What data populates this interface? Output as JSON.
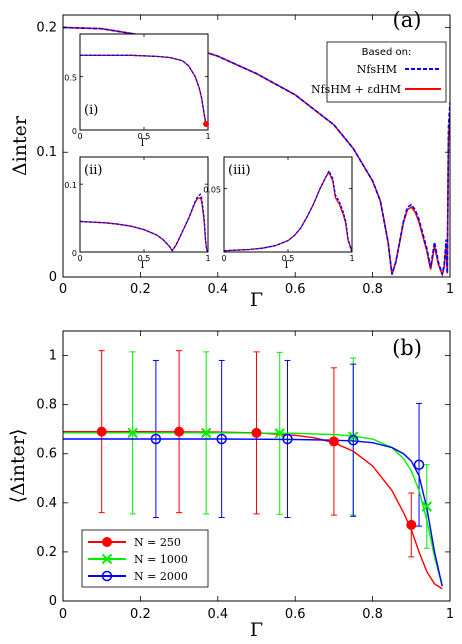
{
  "colors": {
    "blue": "#0000ff",
    "red": "#ff0000",
    "green": "#00ee00",
    "purple": "#7f00bf"
  },
  "chart_data": [
    {
      "type": "line",
      "panel_label": "(a)",
      "xlabel": "Γ",
      "ylabel": "Δinter",
      "xlim": [
        0,
        1
      ],
      "ylim": [
        0,
        0.21
      ],
      "xticks": [
        "0",
        "0.2",
        "0.4",
        "0.6",
        "0.8",
        "1"
      ],
      "yticks": [
        "0",
        "0.1",
        "0.2"
      ],
      "legend": {
        "title": "Based on:",
        "placement": "top-right",
        "entries": [
          {
            "label": "NfsHM",
            "color": "#0000ff",
            "style": "dashed"
          },
          {
            "label": "NfsHM + εdHM",
            "color": "#ff0000",
            "style": "solid"
          }
        ]
      },
      "series": [
        {
          "name": "NfsHM",
          "x": [
            0,
            0.1,
            0.2,
            0.3,
            0.4,
            0.5,
            0.6,
            0.7,
            0.75,
            0.8,
            0.82,
            0.84,
            0.85,
            0.86,
            0.88,
            0.89,
            0.9,
            0.91,
            0.92,
            0.94,
            0.95,
            0.96,
            0.97,
            0.98,
            0.985,
            0.99,
            0.993,
            0.996,
            1.0
          ],
          "y": [
            0.2,
            0.199,
            0.194,
            0.187,
            0.177,
            0.163,
            0.146,
            0.122,
            0.103,
            0.077,
            0.061,
            0.028,
            0.002,
            0.012,
            0.045,
            0.056,
            0.058,
            0.054,
            0.046,
            0.023,
            0.008,
            0.028,
            0.012,
            0.002,
            0.01,
            0.03,
            0.003,
            0.12,
            0.14
          ]
        },
        {
          "name": "NfsHM + εdHM",
          "x": [
            0,
            0.1,
            0.2,
            0.3,
            0.4,
            0.5,
            0.6,
            0.7,
            0.75,
            0.8,
            0.82,
            0.84,
            0.85,
            0.86,
            0.88,
            0.89,
            0.9,
            0.91,
            0.92,
            0.94,
            0.95,
            0.96,
            0.97,
            0.98,
            0.985,
            0.99,
            0.993,
            0.996,
            1.0
          ],
          "y": [
            0.2,
            0.199,
            0.194,
            0.187,
            0.177,
            0.163,
            0.146,
            0.122,
            0.103,
            0.077,
            0.061,
            0.028,
            0.002,
            0.012,
            0.044,
            0.054,
            0.056,
            0.052,
            0.044,
            0.021,
            0.006,
            0.025,
            0.01,
            0.002,
            0.008,
            0.025,
            0.003,
            0.11,
            0.13
          ]
        }
      ],
      "insets": [
        {
          "label": "(i)",
          "xlabel": "Γ",
          "xticks": [
            "0",
            "0.5",
            "1"
          ],
          "yticks": [
            "0",
            "0.5"
          ],
          "xlim": [
            0,
            1
          ],
          "ylim": [
            0,
            0.9
          ],
          "series": [
            {
              "x": [
                0,
                0.2,
                0.4,
                0.6,
                0.7,
                0.8,
                0.85,
                0.9,
                0.93,
                0.95,
                0.97,
                0.98,
                0.99,
                1.0
              ],
              "y": [
                0.7,
                0.7,
                0.7,
                0.69,
                0.68,
                0.65,
                0.6,
                0.5,
                0.4,
                0.3,
                0.15,
                0.08,
                0.05,
                0.06
              ]
            },
            {
              "x": [
                0,
                0.2,
                0.4,
                0.6,
                0.7,
                0.8,
                0.85,
                0.9,
                0.93,
                0.95,
                0.97,
                0.98,
                0.99,
                1.0
              ],
              "y": [
                0.7,
                0.7,
                0.7,
                0.69,
                0.68,
                0.65,
                0.6,
                0.5,
                0.4,
                0.3,
                0.15,
                0.08,
                0.05,
                0.06
              ]
            }
          ]
        },
        {
          "label": "(ii)",
          "xlabel": "Γ",
          "xticks": [
            "0",
            "0.5",
            "1"
          ],
          "yticks": [
            "0",
            "0.1"
          ],
          "xlim": [
            0,
            1
          ],
          "ylim": [
            0,
            0.14
          ],
          "series": [
            {
              "x": [
                0,
                0.1,
                0.2,
                0.3,
                0.4,
                0.5,
                0.6,
                0.65,
                0.7,
                0.72,
                0.75,
                0.8,
                0.85,
                0.88,
                0.9,
                0.92,
                0.94,
                0.95,
                0.97,
                0.98,
                0.99,
                1.0
              ],
              "y": [
                0.045,
                0.044,
                0.043,
                0.041,
                0.038,
                0.033,
                0.025,
                0.018,
                0.008,
                0.002,
                0.01,
                0.03,
                0.05,
                0.065,
                0.075,
                0.082,
                0.085,
                0.08,
                0.05,
                0.02,
                0.003,
                0.0
              ]
            },
            {
              "x": [
                0,
                0.1,
                0.2,
                0.3,
                0.4,
                0.5,
                0.6,
                0.65,
                0.7,
                0.72,
                0.75,
                0.8,
                0.85,
                0.88,
                0.9,
                0.92,
                0.94,
                0.95,
                0.97,
                0.98,
                0.99,
                1.0
              ],
              "y": [
                0.045,
                0.044,
                0.043,
                0.041,
                0.038,
                0.033,
                0.025,
                0.018,
                0.008,
                0.002,
                0.01,
                0.03,
                0.05,
                0.064,
                0.073,
                0.079,
                0.08,
                0.075,
                0.045,
                0.018,
                0.003,
                0.0
              ]
            }
          ]
        },
        {
          "label": "(iii)",
          "xlabel": "Γ",
          "xticks": [
            "0",
            "0.5",
            "1"
          ],
          "yticks": [
            "0.05"
          ],
          "xlim": [
            0,
            1
          ],
          "ylim": [
            0,
            0.075
          ],
          "series": [
            {
              "x": [
                0,
                0.1,
                0.2,
                0.3,
                0.4,
                0.5,
                0.55,
                0.6,
                0.65,
                0.7,
                0.75,
                0.8,
                0.82,
                0.85,
                0.87,
                0.9,
                0.93,
                0.95,
                0.97,
                1.0
              ],
              "y": [
                0.001,
                0.0015,
                0.002,
                0.003,
                0.005,
                0.009,
                0.013,
                0.019,
                0.028,
                0.038,
                0.05,
                0.06,
                0.064,
                0.058,
                0.045,
                0.04,
                0.032,
                0.025,
                0.01,
                0.0
              ]
            },
            {
              "x": [
                0,
                0.1,
                0.2,
                0.3,
                0.4,
                0.5,
                0.55,
                0.6,
                0.65,
                0.7,
                0.75,
                0.8,
                0.82,
                0.85,
                0.87,
                0.9,
                0.93,
                0.95,
                0.97,
                1.0
              ],
              "y": [
                0.001,
                0.0015,
                0.002,
                0.003,
                0.005,
                0.009,
                0.013,
                0.019,
                0.028,
                0.038,
                0.05,
                0.06,
                0.063,
                0.056,
                0.043,
                0.038,
                0.03,
                0.023,
                0.009,
                0.0
              ]
            }
          ]
        }
      ]
    },
    {
      "type": "line",
      "panel_label": "(b)",
      "xlabel": "Γ",
      "ylabel": "⟨Δinter⟩",
      "xlim": [
        0,
        1
      ],
      "ylim": [
        0,
        1.1
      ],
      "xticks": [
        "0",
        "0.2",
        "0.4",
        "0.6",
        "0.8",
        "1"
      ],
      "yticks": [
        "0",
        "0.2",
        "0.4",
        "0.6",
        "0.8",
        "1"
      ],
      "legend": {
        "placement": "bottom-left",
        "entries": [
          {
            "label": "N = 250",
            "color": "#ff0000",
            "marker": "filled-circle"
          },
          {
            "label": "N = 1000",
            "color": "#00ee00",
            "marker": "x"
          },
          {
            "label": "N = 2000",
            "color": "#0000ff",
            "marker": "open-circle"
          }
        ]
      },
      "series": [
        {
          "name": "N = 250",
          "curve_x": [
            0,
            0.2,
            0.4,
            0.5,
            0.6,
            0.65,
            0.7,
            0.75,
            0.8,
            0.85,
            0.88,
            0.9,
            0.92,
            0.94,
            0.96,
            0.98
          ],
          "curve_y": [
            0.69,
            0.69,
            0.688,
            0.685,
            0.675,
            0.665,
            0.645,
            0.61,
            0.55,
            0.45,
            0.36,
            0.29,
            0.2,
            0.12,
            0.07,
            0.05
          ],
          "points": [
            {
              "x": 0.1,
              "y": 0.69,
              "err": 0.33
            },
            {
              "x": 0.3,
              "y": 0.69,
              "err": 0.33
            },
            {
              "x": 0.5,
              "y": 0.685,
              "err": 0.33
            },
            {
              "x": 0.7,
              "y": 0.65,
              "err": 0.3
            },
            {
              "x": 0.9,
              "y": 0.31,
              "err": 0.13
            }
          ]
        },
        {
          "name": "N = 1000",
          "curve_x": [
            0,
            0.2,
            0.4,
            0.6,
            0.7,
            0.75,
            0.8,
            0.85,
            0.88,
            0.9,
            0.92,
            0.94,
            0.96,
            0.98
          ],
          "curve_y": [
            0.685,
            0.685,
            0.685,
            0.683,
            0.678,
            0.672,
            0.66,
            0.625,
            0.58,
            0.53,
            0.45,
            0.33,
            0.18,
            0.06
          ],
          "points": [
            {
              "x": 0.18,
              "y": 0.685,
              "err": 0.33
            },
            {
              "x": 0.37,
              "y": 0.685,
              "err": 0.33
            },
            {
              "x": 0.56,
              "y": 0.683,
              "err": 0.33
            },
            {
              "x": 0.75,
              "y": 0.67,
              "err": 0.32
            },
            {
              "x": 0.94,
              "y": 0.385,
              "err": 0.17
            }
          ]
        },
        {
          "name": "N = 2000",
          "curve_x": [
            0,
            0.2,
            0.4,
            0.6,
            0.7,
            0.75,
            0.8,
            0.85,
            0.88,
            0.9,
            0.92,
            0.94,
            0.96,
            0.98
          ],
          "curve_y": [
            0.66,
            0.66,
            0.66,
            0.658,
            0.655,
            0.652,
            0.645,
            0.625,
            0.6,
            0.57,
            0.51,
            0.38,
            0.2,
            0.06
          ],
          "points": [
            {
              "x": 0.24,
              "y": 0.66,
              "err": 0.32
            },
            {
              "x": 0.41,
              "y": 0.66,
              "err": 0.32
            },
            {
              "x": 0.58,
              "y": 0.66,
              "err": 0.32
            },
            {
              "x": 0.75,
              "y": 0.655,
              "err": 0.31
            },
            {
              "x": 0.92,
              "y": 0.555,
              "err": 0.25
            }
          ]
        }
      ]
    }
  ]
}
